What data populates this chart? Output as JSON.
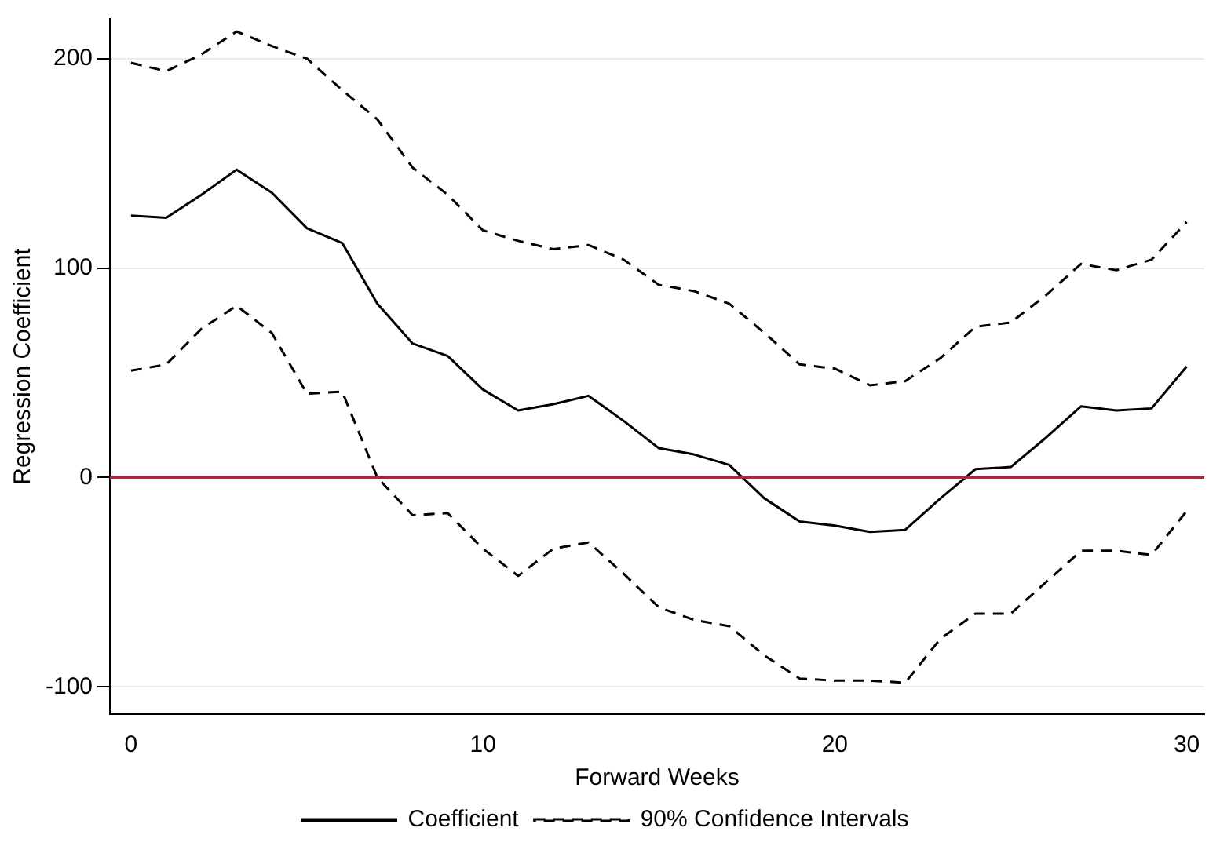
{
  "chart_data": {
    "type": "line",
    "xlabel": "Forward Weeks",
    "ylabel": "Regression Coefficient",
    "x": [
      0,
      1,
      2,
      3,
      4,
      5,
      6,
      7,
      8,
      9,
      10,
      11,
      12,
      13,
      14,
      15,
      16,
      17,
      18,
      19,
      20,
      21,
      22,
      23,
      24,
      25,
      26,
      27,
      28,
      29,
      30
    ],
    "series": [
      {
        "name": "Coefficient",
        "color": "#000000",
        "line_style": "solid",
        "values": [
          125,
          124,
          135,
          147,
          136,
          119,
          112,
          83,
          64,
          58,
          42,
          32,
          35,
          39,
          27,
          14,
          11,
          6,
          -10,
          -21,
          -23,
          -26,
          -25,
          -10,
          4,
          5,
          19,
          34,
          32,
          33,
          53
        ]
      },
      {
        "name": "90% Confidence Intervals",
        "color": "#000000",
        "line_style": "dashed",
        "values": [
          198,
          194,
          202,
          213,
          206,
          200,
          185,
          171,
          148,
          135,
          118,
          113,
          109,
          111,
          104,
          92,
          89,
          83,
          69,
          54,
          52,
          44,
          46,
          57,
          72,
          74,
          87,
          102,
          99,
          104,
          122
        ]
      },
      {
        "color": "#000000",
        "line_style": "dashed",
        "values": [
          51,
          54,
          71,
          82,
          69,
          40,
          41,
          0,
          -18,
          -17,
          -34,
          -47,
          -34,
          -31,
          -46,
          -62,
          -68,
          -71,
          -85,
          -96,
          -97,
          -97,
          -98,
          -77,
          -65,
          -65,
          -50,
          -35,
          -35,
          -37,
          -16
        ]
      }
    ],
    "xlim": [
      -0.6,
      30.5
    ],
    "xticks": [
      0,
      10,
      20,
      30
    ],
    "ylim": [
      -113,
      219
    ],
    "yticks": [
      -100,
      0,
      100,
      200
    ],
    "ref_lines": [
      {
        "axis": "y",
        "value": 0,
        "color": "#b5223c"
      }
    ],
    "grid": "y",
    "legend": "bottom",
    "marker": "none"
  }
}
